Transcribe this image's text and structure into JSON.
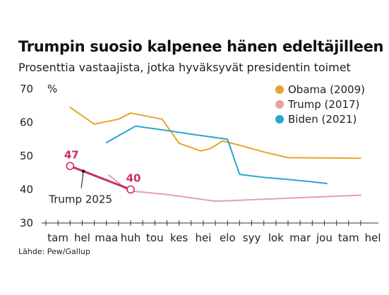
{
  "title": "Trumpin suosio kalpenee hänen edeltäjilleen",
  "subtitle": "Prosenttia vastaajista, jotka hyväksyvät presidentin toimet",
  "source": "Lähde: Pew/Gallup",
  "chart_data": {
    "type": "line",
    "y_unit_label": "%",
    "ylim": [
      30,
      70
    ],
    "yticks": [
      30,
      40,
      50,
      60,
      70
    ],
    "categories": [
      "tam",
      "hel",
      "maa",
      "huh",
      "tou",
      "kes",
      "hei",
      "elo",
      "syy",
      "lok",
      "mar",
      "jou",
      "tam",
      "hel"
    ],
    "grid": false,
    "legend_position": "top-right",
    "series": [
      {
        "name": "Obama (2009)",
        "color": "#e6a52a",
        "points": [
          [
            1,
            64.5
          ],
          [
            2,
            59.5
          ],
          [
            3,
            61
          ],
          [
            3.5,
            62.8
          ],
          [
            4.8,
            61
          ],
          [
            5.5,
            53.8
          ],
          [
            6.4,
            51.5
          ],
          [
            6.8,
            52.2
          ],
          [
            7.3,
            54.5
          ],
          [
            8,
            53.2
          ],
          [
            9,
            51.2
          ],
          [
            10,
            49.5
          ],
          [
            12,
            49.4
          ],
          [
            13,
            49.3
          ]
        ]
      },
      {
        "name": "Trump (2017)",
        "color": "#e8a0a4",
        "points": [
          [
            2.6,
            44.3
          ],
          [
            3,
            42
          ],
          [
            3.4,
            39.6
          ],
          [
            4,
            39.2
          ],
          [
            5,
            38.5
          ],
          [
            6,
            37.5
          ],
          [
            7,
            36.5
          ],
          [
            8,
            36.8
          ],
          [
            9,
            37.1
          ],
          [
            10,
            37.4
          ],
          [
            11,
            37.7
          ],
          [
            12,
            38
          ],
          [
            13,
            38.3
          ]
        ]
      },
      {
        "name": "Biden (2021)",
        "color": "#2aa6cf",
        "points": [
          [
            2.5,
            54
          ],
          [
            3.7,
            58.9
          ],
          [
            5,
            57.6
          ],
          [
            6,
            56.5
          ],
          [
            7,
            55.5
          ],
          [
            7.5,
            55
          ],
          [
            8,
            44.5
          ],
          [
            9,
            43.6
          ],
          [
            10,
            43
          ],
          [
            11,
            42.3
          ],
          [
            11.6,
            41.8
          ]
        ]
      },
      {
        "name": "Trump 2025",
        "color": "#cc2e5e",
        "points": [
          [
            1,
            47
          ],
          [
            3.5,
            40
          ]
        ],
        "markers": [
          47,
          40
        ],
        "label": "Trump 2025"
      }
    ]
  }
}
